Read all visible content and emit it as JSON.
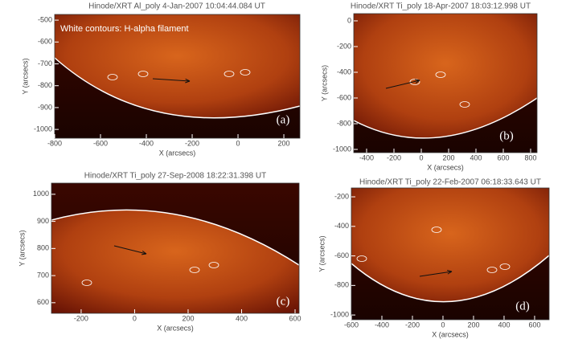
{
  "chart_data": [
    {
      "type": "image",
      "title": "Hinode/XRT Al_poly  4-Jan-2007 10:04:44.084 UT",
      "annotation": "White contours: H-alpha filament",
      "panel_label": "(a)",
      "x_label": "X (arcsecs)",
      "y_label": "Y (arcsecs)",
      "xlim": [
        -800,
        270
      ],
      "xticks": [
        -800,
        -600,
        -400,
        -200,
        0,
        200
      ],
      "ylim": [
        -1040,
        -474
      ],
      "yticks": [
        -500,
        -600,
        -700,
        -800,
        -900,
        -1000
      ]
    },
    {
      "type": "image",
      "title": "Hinode/XRT Ti_poly 18-Apr-2007 18:03:12.998 UT",
      "panel_label": "(b)",
      "x_label": "X (arcsecs)",
      "y_label": "Y (arcsecs)",
      "xlim": [
        -494,
        847
      ],
      "xticks": [
        -400,
        -200,
        0,
        200,
        400,
        600,
        800
      ],
      "ylim": [
        -1025,
        56
      ],
      "yticks": [
        0,
        -200,
        -400,
        -600,
        -800,
        -1000
      ]
    },
    {
      "type": "image",
      "title": "Hinode/XRT Ti_poly 27-Sep-2008 18:22:31.398 UT",
      "panel_label": "(c)",
      "x_label": "X (arcsecs)",
      "y_label": "Y (arcsecs)",
      "xlim": [
        -311,
        615
      ],
      "xticks": [
        -200,
        0,
        200,
        400,
        600
      ],
      "ylim": [
        561,
        1041
      ],
      "yticks": [
        1000,
        900,
        800,
        700,
        600
      ]
    },
    {
      "type": "image",
      "title": "Hinode/XRT Ti_poly 22-Feb-2007 06:18:33.643 UT",
      "panel_label": "(d)",
      "x_label": "X (arcsecs)",
      "y_label": "Y (arcsecs)",
      "xlim": [
        -600,
        695
      ],
      "xticks": [
        -600,
        -400,
        -200,
        0,
        200,
        400,
        600
      ],
      "ylim": [
        -1032,
        -140
      ],
      "yticks": [
        -200,
        -400,
        -600,
        -800,
        -1000
      ]
    }
  ]
}
